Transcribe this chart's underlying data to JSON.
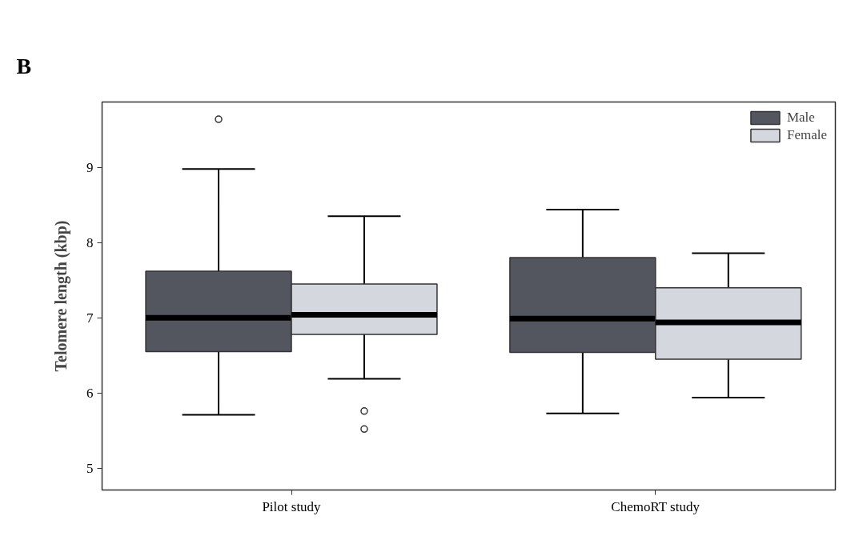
{
  "chart_data": {
    "type": "box",
    "ylabel": "Telomere length (kbp)",
    "annotations": [
      "B"
    ],
    "categories": [
      "Pilot study",
      "ChemoRT study"
    ],
    "ylim": [
      4.71,
      9.87
    ],
    "yticks": [
      5,
      6,
      7,
      8,
      9
    ],
    "grid": false,
    "legend": "top right",
    "series": [
      {
        "name": "Male",
        "color": "#53555f",
        "boxes": [
          {
            "low": 5.71,
            "q1": 6.55,
            "median": 7.0,
            "q3": 7.62,
            "high": 8.98,
            "outliers": [
              9.64
            ]
          },
          {
            "low": 5.73,
            "q1": 6.54,
            "median": 6.99,
            "q3": 7.8,
            "high": 8.44
          }
        ]
      },
      {
        "name": "Female",
        "color": "#d4d7de",
        "boxes": [
          {
            "low": 6.19,
            "q1": 6.78,
            "median": 7.04,
            "q3": 7.45,
            "high": 8.35,
            "outliers": [
              5.76,
              5.52
            ]
          },
          {
            "low": 5.94,
            "q1": 6.45,
            "median": 6.94,
            "q3": 7.4,
            "high": 7.86
          }
        ]
      }
    ]
  }
}
